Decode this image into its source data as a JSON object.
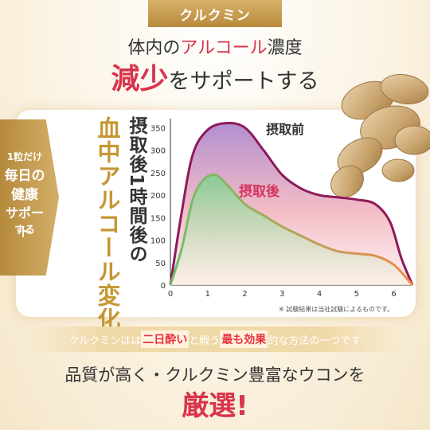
{
  "badge": "クルクミン",
  "headline": {
    "line1_pre": "体内の",
    "line1_highlight": "アルコール",
    "line1_post": "濃度",
    "line2_highlight": "減少",
    "line2_post": "をサポートする"
  },
  "side_badge": {
    "lines": [
      "1粒だけ",
      "毎日の",
      "健康",
      "サポート",
      "する"
    ]
  },
  "vertical_title_black": "摂取後1時間後の",
  "vertical_title_gold": "血中アルコール変化",
  "footnote": "※ 試験結果は当社試験によるものです。",
  "banner": {
    "p1": "クルクミンはは",
    "h1": "二日酔い",
    "p2": "と戦う",
    "h2": "最も効果",
    "p3": "的な方法の一つです"
  },
  "footer": {
    "line1": "品質が高く・クルクミン豊富なウコンを",
    "line2": "厳選!"
  },
  "chart_data": {
    "type": "area",
    "x_ticks": [
      0,
      1,
      2,
      3,
      4,
      5,
      6
    ],
    "y_ticks": [
      0,
      50,
      100,
      150,
      200,
      250,
      300,
      350
    ],
    "xlim": [
      0,
      6.5
    ],
    "ylim": [
      0,
      370
    ],
    "grid": false,
    "series": [
      {
        "name": "摂取前",
        "color": "#8e1a5a",
        "x": [
          0,
          0.3,
          0.6,
          1.0,
          1.5,
          2.0,
          2.5,
          3.0,
          3.5,
          4.0,
          4.5,
          5.0,
          5.5,
          5.9,
          6.2,
          6.5
        ],
        "y": [
          0,
          160,
          290,
          345,
          360,
          350,
          300,
          245,
          215,
          200,
          195,
          190,
          180,
          140,
          60,
          0
        ]
      },
      {
        "name": "摂取後",
        "color": "#d6335e",
        "x": [
          0,
          0.3,
          0.6,
          0.9,
          1.2,
          1.5,
          2.0,
          2.5,
          3.0,
          3.5,
          4.0,
          4.5,
          5.0,
          5.5,
          6.0,
          6.5
        ],
        "y": [
          0,
          80,
          190,
          235,
          245,
          225,
          180,
          155,
          130,
          110,
          90,
          75,
          70,
          65,
          45,
          0
        ]
      }
    ]
  }
}
